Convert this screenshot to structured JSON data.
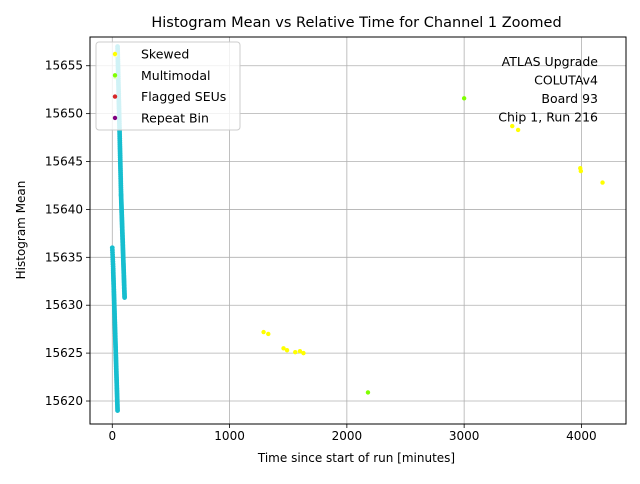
{
  "chart_data": {
    "type": "scatter",
    "title": "Histogram Mean vs Relative Time for Channel 1 Zoomed",
    "xlabel": "Time since start of run [minutes]",
    "ylabel": "Histogram Mean",
    "xlim": [
      -190,
      4380
    ],
    "ylim": [
      15617.6,
      15658.0
    ],
    "x_ticks": [
      0,
      1000,
      2000,
      3000,
      4000
    ],
    "x_tick_labels": [
      "0",
      "1000",
      "2000",
      "3000",
      "4000"
    ],
    "y_ticks": [
      15620,
      15625,
      15630,
      15635,
      15640,
      15645,
      15650,
      15655
    ],
    "y_tick_labels": [
      "15620",
      "15625",
      "15630",
      "15635",
      "15640",
      "15645",
      "15650",
      "15655"
    ],
    "grid": true,
    "legend_position": "top-left",
    "annotation": [
      "ATLAS Upgrade",
      "COLUTAv4",
      "Board 93",
      "Chip 1, Run 216"
    ],
    "colors": {
      "main": "#17becf",
      "skewed": "#ffff00",
      "multimodal": "#7fff00",
      "flagged": "#d62728",
      "repeat": "#800080"
    },
    "series": [
      {
        "name": "",
        "color": "main",
        "marker_size": 2.4,
        "segments": [
          {
            "x0": 0,
            "x1": 8,
            "y0": 15636.0,
            "y1": 15633.8,
            "n": 10
          },
          {
            "x0": 8,
            "x1": 45,
            "y0": 15633.6,
            "y1": 15619.0,
            "n": 90
          },
          {
            "x0": 45,
            "x1": 75,
            "y0": 15657.0,
            "y1": 15641.5,
            "n": 80
          },
          {
            "x0": 75,
            "x1": 105,
            "y0": 15641.5,
            "y1": 15630.8,
            "n": 70
          }
        ]
      },
      {
        "name": "Skewed",
        "color": "skewed",
        "marker_size": 2.2,
        "points": [
          [
            25,
            15656.1
          ],
          [
            1290,
            15627.2
          ],
          [
            1330,
            15627.0
          ],
          [
            1460,
            15625.5
          ],
          [
            1490,
            15625.3
          ],
          [
            1560,
            15625.1
          ],
          [
            1600,
            15625.2
          ],
          [
            1630,
            15625.0
          ],
          [
            3410,
            15648.7
          ],
          [
            3460,
            15648.3
          ],
          [
            3990,
            15644.3
          ],
          [
            3995,
            15644.0
          ],
          [
            4180,
            15642.8
          ]
        ]
      },
      {
        "name": "Multimodal",
        "color": "multimodal",
        "marker_size": 2.2,
        "points": [
          [
            25,
            15653.8
          ],
          [
            2180,
            15620.9
          ],
          [
            3000,
            15651.6
          ]
        ]
      },
      {
        "name": "Flagged SEUs",
        "color": "flagged",
        "marker_size": 2.2,
        "points": []
      },
      {
        "name": "Repeat Bin",
        "color": "repeat",
        "marker_size": 2.2,
        "points": []
      }
    ]
  }
}
